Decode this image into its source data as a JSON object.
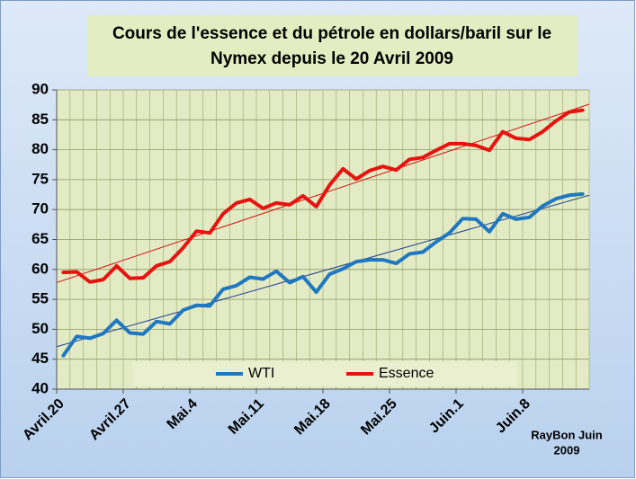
{
  "chart_data": {
    "type": "line",
    "title": [
      "Cours de l'essence et du pétrole en dollars/baril sur le",
      "Nymex  depuis le 20 Avril 2009"
    ],
    "annotation": [
      "RayBon Juin",
      "2009"
    ],
    "categories": [
      "Avril.20",
      null,
      null,
      null,
      null,
      "Avril.27",
      null,
      null,
      null,
      null,
      "Mai.4",
      null,
      null,
      null,
      null,
      "Mai.11",
      null,
      null,
      null,
      null,
      "Mai.18",
      null,
      null,
      null,
      null,
      "Mai.25",
      null,
      null,
      null,
      null,
      "Juin.1",
      null,
      null,
      null,
      null,
      "Juin.8",
      null,
      null,
      null,
      null
    ],
    "series": [
      {
        "name": "WTI",
        "color": "#1f78c1",
        "trend_color": "#1f3f8f",
        "trend": [
          47.1,
          72.4
        ],
        "values": [
          45.6,
          48.8,
          48.5,
          49.3,
          51.5,
          49.4,
          49.2,
          51.3,
          50.9,
          53.2,
          54.0,
          53.9,
          56.7,
          57.3,
          58.7,
          58.4,
          59.7,
          57.8,
          58.8,
          56.2,
          59.2,
          60.1,
          61.3,
          61.6,
          61.6,
          61.0,
          62.6,
          62.9,
          64.6,
          66.1,
          68.5,
          68.4,
          66.3,
          69.3,
          68.4,
          68.7,
          70.6,
          71.8,
          72.4,
          72.6
        ]
      },
      {
        "name": "Essence",
        "color": "#e8120f",
        "trend_color": "#d81010",
        "trend": [
          57.8,
          87.6
        ],
        "values": [
          59.5,
          59.6,
          57.9,
          58.3,
          60.6,
          58.5,
          58.6,
          60.6,
          61.3,
          63.6,
          66.4,
          66.1,
          69.3,
          71.1,
          71.7,
          70.2,
          71.1,
          70.8,
          72.3,
          70.5,
          74.1,
          76.8,
          75.1,
          76.5,
          77.2,
          76.6,
          78.4,
          78.7,
          79.9,
          81.0,
          81.0,
          80.7,
          79.9,
          83.0,
          81.9,
          81.7,
          83.0,
          84.8,
          86.3,
          86.6
        ]
      }
    ],
    "ylim": [
      40,
      90
    ],
    "yticks": [
      40,
      45,
      50,
      55,
      60,
      65,
      70,
      75,
      80,
      85,
      90
    ],
    "grid": true,
    "legend": "bottom"
  }
}
